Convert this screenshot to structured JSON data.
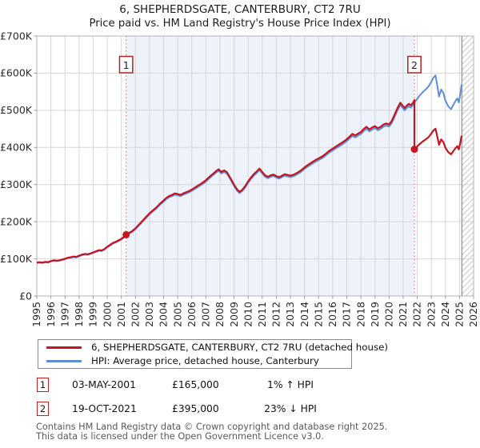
{
  "title": {
    "line1": "6, SHEPHERDSGATE, CANTERBURY, CT2 7RU",
    "line2": "Price paid vs. HM Land Registry's House Price Index (HPI)"
  },
  "legend": [
    {
      "label": "6, SHEPHERDSGATE, CANTERBURY, CT2 7RU (detached house)",
      "color": "#c41520"
    },
    {
      "label": "HPI: Average price, detached house, Canterbury",
      "color": "#5f8ed2"
    }
  ],
  "annotations": [
    {
      "num": "1",
      "date": "03-MAY-2001",
      "price": "£165,000",
      "hpi_diff": "1% ↑ HPI"
    },
    {
      "num": "2",
      "date": "19-OCT-2021",
      "price": "£395,000",
      "hpi_diff": "23% ↓ HPI"
    }
  ],
  "footer": {
    "line1": "Contains HM Land Registry data © Crown copyright and database right 2025.",
    "line2": "This data is licensed under the Open Government Licence v3.0."
  },
  "chart_data": {
    "type": "line",
    "title": "6, SHEPHERDSGATE, CANTERBURY, CT2 7RU — Price paid vs. HPI",
    "x_axis": {
      "min": 1995,
      "max": 2026,
      "tick_labels": [
        "1995",
        "1996",
        "1997",
        "1998",
        "1999",
        "2000",
        "2001",
        "2002",
        "2003",
        "2004",
        "2005",
        "2006",
        "2007",
        "2008",
        "2009",
        "2010",
        "2011",
        "2012",
        "2013",
        "2014",
        "2015",
        "2016",
        "2017",
        "2018",
        "2019",
        "2020",
        "2021",
        "2022",
        "2023",
        "2024",
        "2025",
        "2026"
      ]
    },
    "y_axis": {
      "min": 0,
      "max": 700000,
      "tick_labels": [
        "£0",
        "£100K",
        "£200K",
        "£300K",
        "£400K",
        "£500K",
        "£600K",
        "£700K"
      ]
    },
    "grid": true,
    "legend_position": "bottom",
    "series": [
      {
        "name": "HPI: Average price, detached house, Canterbury",
        "color": "#5f8ed2",
        "points": [
          [
            1995.0,
            89000
          ],
          [
            1995.2,
            90000
          ],
          [
            1995.4,
            89000
          ],
          [
            1995.6,
            91000
          ],
          [
            1995.8,
            90000
          ],
          [
            1996.0,
            93000
          ],
          [
            1996.2,
            95000
          ],
          [
            1996.4,
            94000
          ],
          [
            1996.6,
            95000
          ],
          [
            1996.8,
            97000
          ],
          [
            1997.0,
            99000
          ],
          [
            1997.2,
            102000
          ],
          [
            1997.4,
            103000
          ],
          [
            1997.6,
            105000
          ],
          [
            1997.8,
            104000
          ],
          [
            1998.0,
            107000
          ],
          [
            1998.2,
            110000
          ],
          [
            1998.4,
            112000
          ],
          [
            1998.6,
            111000
          ],
          [
            1998.8,
            113000
          ],
          [
            1999.0,
            116000
          ],
          [
            1999.2,
            119000
          ],
          [
            1999.4,
            122000
          ],
          [
            1999.6,
            121000
          ],
          [
            1999.8,
            125000
          ],
          [
            2000.0,
            131000
          ],
          [
            2000.2,
            136000
          ],
          [
            2000.4,
            141000
          ],
          [
            2000.6,
            144000
          ],
          [
            2000.8,
            148000
          ],
          [
            2001.0,
            152000
          ],
          [
            2001.2,
            158000
          ],
          [
            2001.34,
            163000
          ],
          [
            2001.5,
            167000
          ],
          [
            2001.75,
            172000
          ],
          [
            2002.0,
            180000
          ],
          [
            2002.25,
            190000
          ],
          [
            2002.5,
            200000
          ],
          [
            2002.75,
            210000
          ],
          [
            2003.0,
            220000
          ],
          [
            2003.25,
            228000
          ],
          [
            2003.5,
            236000
          ],
          [
            2003.75,
            246000
          ],
          [
            2004.0,
            254000
          ],
          [
            2004.2,
            261000
          ],
          [
            2004.4,
            266000
          ],
          [
            2004.6,
            269000
          ],
          [
            2004.8,
            273000
          ],
          [
            2005.0,
            271000
          ],
          [
            2005.2,
            269000
          ],
          [
            2005.4,
            273000
          ],
          [
            2005.6,
            276000
          ],
          [
            2005.8,
            279000
          ],
          [
            2006.0,
            283000
          ],
          [
            2006.25,
            289000
          ],
          [
            2006.5,
            295000
          ],
          [
            2006.75,
            301000
          ],
          [
            2007.0,
            308000
          ],
          [
            2007.25,
            317000
          ],
          [
            2007.5,
            325000
          ],
          [
            2007.75,
            333000
          ],
          [
            2007.9,
            337000
          ],
          [
            2008.1,
            330000
          ],
          [
            2008.3,
            334000
          ],
          [
            2008.5,
            329000
          ],
          [
            2008.75,
            313000
          ],
          [
            2009.0,
            296000
          ],
          [
            2009.2,
            284000
          ],
          [
            2009.4,
            277000
          ],
          [
            2009.6,
            283000
          ],
          [
            2009.8,
            293000
          ],
          [
            2010.0,
            305000
          ],
          [
            2010.2,
            315000
          ],
          [
            2010.4,
            324000
          ],
          [
            2010.6,
            331000
          ],
          [
            2010.8,
            339000
          ],
          [
            2011.0,
            330000
          ],
          [
            2011.2,
            321000
          ],
          [
            2011.4,
            317000
          ],
          [
            2011.6,
            321000
          ],
          [
            2011.8,
            323000
          ],
          [
            2012.0,
            319000
          ],
          [
            2012.2,
            316000
          ],
          [
            2012.4,
            320000
          ],
          [
            2012.6,
            324000
          ],
          [
            2012.8,
            322000
          ],
          [
            2013.0,
            320000
          ],
          [
            2013.25,
            323000
          ],
          [
            2013.5,
            328000
          ],
          [
            2013.75,
            334000
          ],
          [
            2014.0,
            342000
          ],
          [
            2014.25,
            349000
          ],
          [
            2014.5,
            355000
          ],
          [
            2014.75,
            361000
          ],
          [
            2015.0,
            366000
          ],
          [
            2015.25,
            371000
          ],
          [
            2015.5,
            378000
          ],
          [
            2015.75,
            386000
          ],
          [
            2016.0,
            392000
          ],
          [
            2016.25,
            398000
          ],
          [
            2016.5,
            404000
          ],
          [
            2016.75,
            410000
          ],
          [
            2017.0,
            417000
          ],
          [
            2017.2,
            424000
          ],
          [
            2017.4,
            431000
          ],
          [
            2017.6,
            427000
          ],
          [
            2017.8,
            432000
          ],
          [
            2018.0,
            436000
          ],
          [
            2018.2,
            444000
          ],
          [
            2018.4,
            450000
          ],
          [
            2018.6,
            443000
          ],
          [
            2018.8,
            448000
          ],
          [
            2019.0,
            452000
          ],
          [
            2019.2,
            446000
          ],
          [
            2019.4,
            450000
          ],
          [
            2019.6,
            456000
          ],
          [
            2019.8,
            459000
          ],
          [
            2020.0,
            456000
          ],
          [
            2020.2,
            466000
          ],
          [
            2020.4,
            483000
          ],
          [
            2020.6,
            500000
          ],
          [
            2020.8,
            514000
          ],
          [
            2020.95,
            507000
          ],
          [
            2021.1,
            500000
          ],
          [
            2021.25,
            506000
          ],
          [
            2021.4,
            511000
          ],
          [
            2021.55,
            507000
          ],
          [
            2021.7,
            514000
          ],
          [
            2021.8,
            521000
          ],
          [
            2022.0,
            531000
          ],
          [
            2022.2,
            541000
          ],
          [
            2022.4,
            549000
          ],
          [
            2022.6,
            556000
          ],
          [
            2022.8,
            564000
          ],
          [
            2023.0,
            577000
          ],
          [
            2023.15,
            588000
          ],
          [
            2023.3,
            594000
          ],
          [
            2023.45,
            560000
          ],
          [
            2023.55,
            537000
          ],
          [
            2023.7,
            556000
          ],
          [
            2023.85,
            547000
          ],
          [
            2024.0,
            526000
          ],
          [
            2024.2,
            511000
          ],
          [
            2024.4,
            503000
          ],
          [
            2024.55,
            514000
          ],
          [
            2024.7,
            524000
          ],
          [
            2024.85,
            532000
          ],
          [
            2024.95,
            521000
          ],
          [
            2025.05,
            543000
          ],
          [
            2025.15,
            569000
          ]
        ]
      },
      {
        "name": "6, SHEPHERDSGATE, CANTERBURY, CT2 7RU (detached house)",
        "color": "#c41520",
        "derived_from": "HPI series scaled through the two sale prices",
        "factor_before_sale2": 1.0123,
        "factor_after_sale2": 0.7582
      }
    ],
    "sales": [
      {
        "label": "1",
        "x": 2001.34,
        "date": "03-MAY-2001",
        "price_gbp": 165000,
        "vs_hpi": "1% above HPI"
      },
      {
        "label": "2",
        "x": 2021.8,
        "date": "19-OCT-2021",
        "price_gbp": 395000,
        "vs_hpi": "23% below HPI"
      }
    ],
    "shaded_region": [
      2001.34,
      2021.8
    ],
    "hatched_region": [
      2025.17,
      2026
    ],
    "colors": {
      "price_paid_line": "#c41520",
      "hpi_line": "#5f8ed2",
      "shade": "#eef2fb",
      "gridline": "#d6d6d6",
      "plot_border": "#b3b3b3",
      "sale_dashed_line": "#e87878",
      "marker_box_border": "#a52a2a",
      "hatch_line": "#c9c9c9",
      "axis_label": "#2a2a2a"
    }
  }
}
